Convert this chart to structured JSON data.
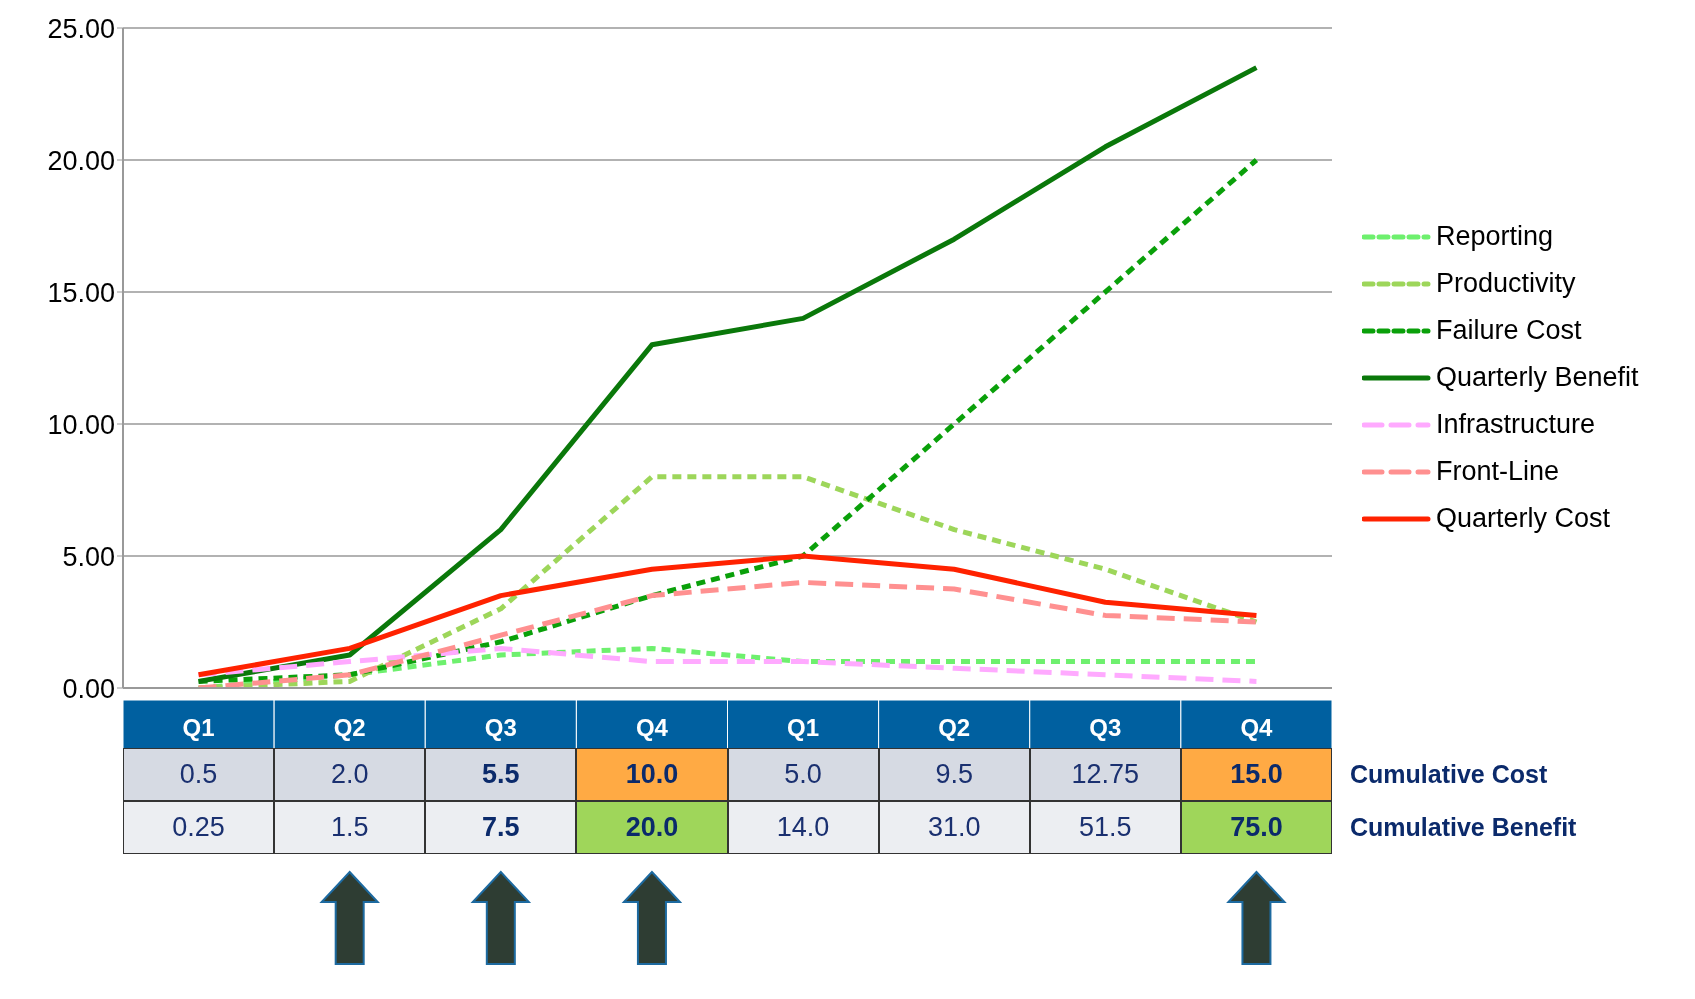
{
  "chart_data": {
    "type": "line",
    "categories": [
      "Q1",
      "Q2",
      "Q3",
      "Q4",
      "Q1",
      "Q2",
      "Q3",
      "Q4"
    ],
    "series": [
      {
        "name": "Reporting",
        "color": "#6ef06e",
        "line_style": "dashed",
        "values": [
          0,
          0.5,
          1.25,
          1.5,
          1,
          1,
          1,
          1
        ]
      },
      {
        "name": "Productivity",
        "color": "#9dd65a",
        "line_style": "dashed",
        "values": [
          0,
          0.25,
          3,
          8,
          8,
          6,
          4.5,
          2.5
        ]
      },
      {
        "name": "Failure Cost",
        "color": "#0aa00a",
        "line_style": "dashed",
        "values": [
          0.25,
          0.5,
          1.75,
          3.5,
          5,
          10,
          15,
          20
        ]
      },
      {
        "name": "Quarterly Benefit",
        "color": "#0a780a",
        "line_style": "solid",
        "values": [
          0.25,
          1.25,
          6,
          13,
          14,
          17,
          20.5,
          23.5
        ]
      },
      {
        "name": "Infrastructure",
        "color": "#ffaaff",
        "line_style": "dashed",
        "values": [
          0.5,
          1,
          1.5,
          1,
          1,
          0.75,
          0.5,
          0.25
        ]
      },
      {
        "name": "Front-Line",
        "color": "#ff9090",
        "line_style": "dashed",
        "values": [
          0,
          0.5,
          2,
          3.5,
          4,
          3.75,
          2.75,
          2.5
        ]
      },
      {
        "name": "Quarterly Cost",
        "color": "#ff2200",
        "line_style": "solid",
        "values": [
          0.5,
          1.5,
          3.5,
          4.5,
          5,
          4.5,
          3.25,
          2.75
        ]
      }
    ],
    "ylim": [
      0,
      25
    ],
    "yticks": [
      {
        "value": 0,
        "label": "0.00"
      },
      {
        "value": 5,
        "label": "5.00"
      },
      {
        "value": 10,
        "label": "10.00"
      },
      {
        "value": 15,
        "label": "15.00"
      },
      {
        "value": 20,
        "label": "20.00"
      },
      {
        "value": 25,
        "label": "25.00"
      }
    ],
    "grid": "y",
    "legend": "right",
    "annotations": [
      "0.5",
      "2.0",
      "5.5",
      "10.0",
      "5.0",
      "9.5",
      "12.75",
      "15.0",
      "Cumulative Cost",
      "0.25",
      "1.5",
      "7.5",
      "20.0",
      "14.0",
      "31.0",
      "51.5",
      "75.0",
      "Cumulative Benefit"
    ]
  }
}
